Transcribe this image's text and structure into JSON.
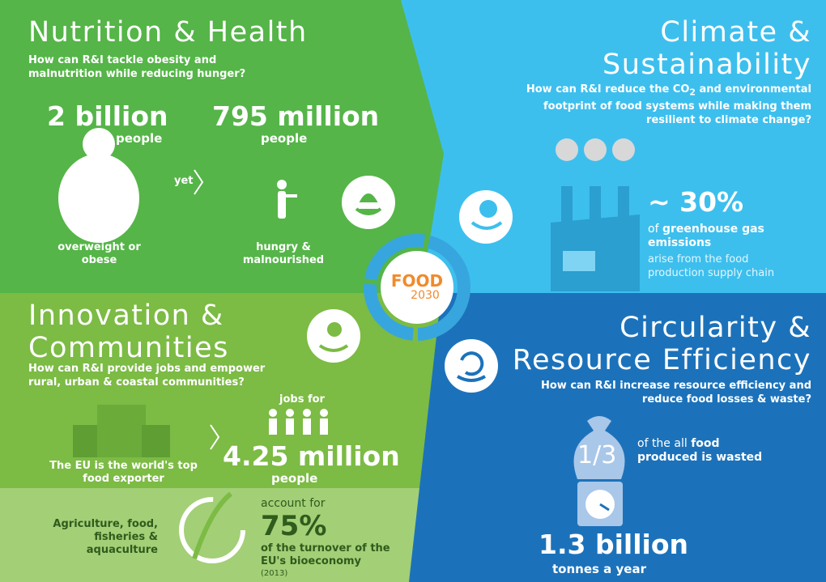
{
  "nutrition": {
    "title": "Nutrition & Health",
    "question": "How can R&I tackle obesity and malnutrition while reducing hunger?",
    "stat1_value": "2 billion",
    "stat1_unit": "people",
    "stat1_label": "overweight or obese",
    "connector": "yet",
    "stat2_value": "795 million",
    "stat2_unit": "people",
    "stat2_label": "hungry & malnourished"
  },
  "climate": {
    "title": "Climate & Sustainability",
    "question_before": "How can R&I reduce the CO",
    "question_sub": "2",
    "question_after": " and environmental footprint of food systems while making them resilient to climate change?",
    "stat_value": "~ 30%",
    "stat_lead": "of ",
    "stat_bold": "greenhouse gas emissions",
    "stat_rest": "arise from the food production supply chain"
  },
  "innovation": {
    "title": "Innovation & Communities",
    "question": "How can R&I provide jobs and empower rural, urban & coastal communities?",
    "exporter": "The EU is the world's top food exporter",
    "jobs_lead": "jobs for",
    "jobs_value": "4.25 million",
    "jobs_unit": "people",
    "sector": "Agriculture, food, fisheries & aquaculture",
    "share_lead": "account for",
    "share_value": "75%",
    "share_label": "of the turnover of the EU's bioeconomy",
    "share_year": "(2013)"
  },
  "circularity": {
    "title": "Circularity & Resource Efficiency",
    "question": "How can R&I increase resource efficiency and reduce food losses & waste?",
    "fraction": "1/3",
    "fraction_lead": "of the all ",
    "fraction_bold": "food",
    "fraction_rest": " produced is wasted",
    "waste_value": "1.3 billion",
    "waste_unit": "tonnes a year"
  },
  "center": {
    "word": "FOOD",
    "year": "2030"
  }
}
